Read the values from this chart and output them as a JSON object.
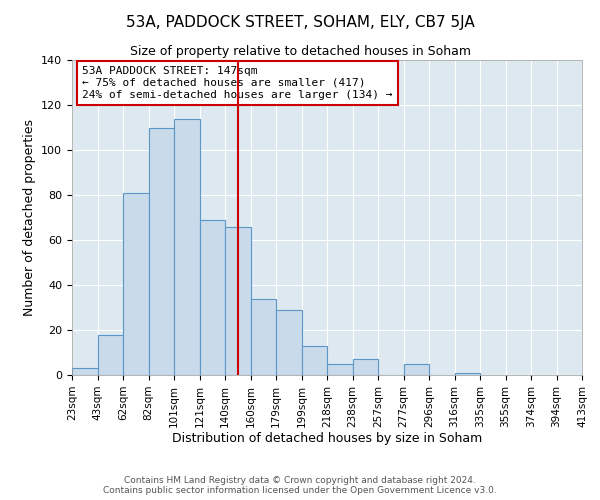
{
  "title": "53A, PADDOCK STREET, SOHAM, ELY, CB7 5JA",
  "subtitle": "Size of property relative to detached houses in Soham",
  "xlabel": "Distribution of detached houses by size in Soham",
  "ylabel": "Number of detached properties",
  "bar_values": [
    3,
    18,
    81,
    110,
    114,
    69,
    66,
    34,
    29,
    13,
    5,
    7,
    0,
    5,
    0,
    1
  ],
  "num_bins": 16,
  "tick_labels": [
    "23sqm",
    "43sqm",
    "62sqm",
    "82sqm",
    "101sqm",
    "121sqm",
    "140sqm",
    "160sqm",
    "179sqm",
    "199sqm",
    "218sqm",
    "238sqm",
    "257sqm",
    "277sqm",
    "296sqm",
    "316sqm",
    "335sqm",
    "355sqm",
    "374sqm",
    "394sqm",
    "413sqm"
  ],
  "bar_color": "#c9daea",
  "bar_edge_color": "#5b96c8",
  "vline_position": 6.5,
  "vline_color": "#cc0000",
  "annotation_line1": "53A PADDOCK STREET: 147sqm",
  "annotation_line2": "← 75% of detached houses are smaller (417)",
  "annotation_line3": "24% of semi-detached houses are larger (134) →",
  "annotation_box_color": "#cc0000",
  "annotation_bg": "#ffffff",
  "ylim": [
    0,
    140
  ],
  "yticks": [
    0,
    20,
    40,
    60,
    80,
    100,
    120,
    140
  ],
  "footer_line1": "Contains HM Land Registry data © Crown copyright and database right 2024.",
  "footer_line2": "Contains public sector information licensed under the Open Government Licence v3.0.",
  "bg_color": "#ffffff",
  "plot_bg_color": "#dde8f0",
  "grid_color": "#ffffff",
  "title_fontsize": 11,
  "subtitle_fontsize": 9,
  "xlabel_fontsize": 9,
  "ylabel_fontsize": 9,
  "tick_fontsize": 7.5,
  "footer_fontsize": 6.5
}
